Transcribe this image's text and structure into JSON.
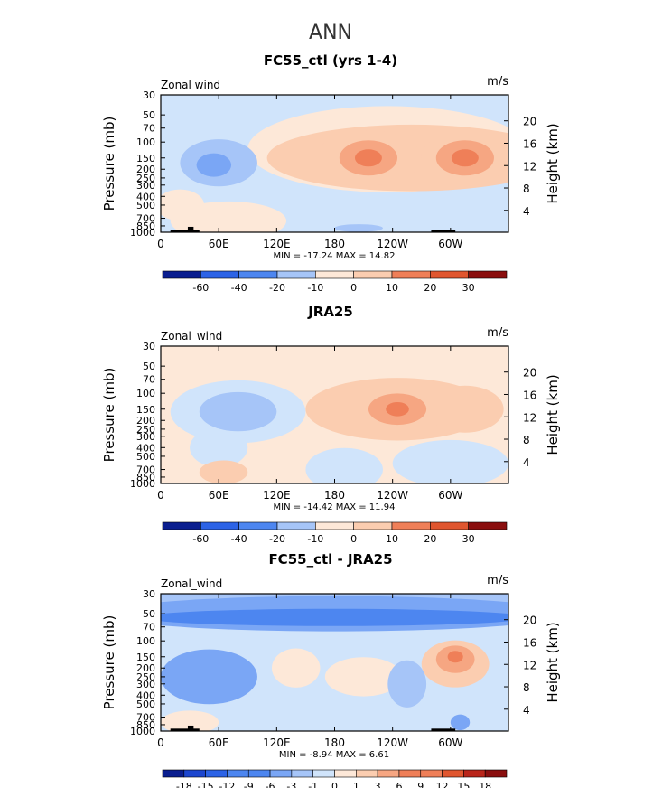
{
  "page": {
    "title": "ANN"
  },
  "colors": {
    "neg": [
      "#0a1e8f",
      "#1c46cf",
      "#2c63e6",
      "#4d86f0",
      "#7aa6f5",
      "#a6c5f8",
      "#d0e4fb"
    ],
    "pos": [
      "#fde8d8",
      "#fbcdb0",
      "#f6a682",
      "#ef7f58",
      "#e0562f",
      "#b9251a",
      "#8a0e0e"
    ]
  },
  "chart_data": [
    {
      "type": "heatmap",
      "title": "FC55_ctl (yrs 1-4)",
      "variable_label": "Zonal wind",
      "units": "m/s",
      "ylabel": "Pressure (mb)",
      "ylabel_right": "Height (km)",
      "x_ticks": [
        "0",
        "60E",
        "120E",
        "180",
        "120W",
        "60W"
      ],
      "y_ticks": [
        "30",
        "50",
        "70",
        "100",
        "150",
        "200",
        "250",
        "300",
        "400",
        "500",
        "700",
        "850",
        "1000"
      ],
      "height_ticks": [
        "20",
        "16",
        "12",
        "8",
        "4"
      ],
      "stats": "MIN = -17.24   MAX = 14.82",
      "min": -17.24,
      "max": 14.82,
      "colorbar_labels": [
        "-60",
        "-40",
        "-20",
        "-10",
        "0",
        "10",
        "20",
        "30"
      ],
      "background_level": -1,
      "features": [
        {
          "lon": 260,
          "p": 150,
          "level": 2,
          "rx": 150,
          "rp": 0.85
        },
        {
          "lon": 215,
          "p": 150,
          "level": 2,
          "rx": 55,
          "rp": 0.7
        },
        {
          "lon": 315,
          "p": 150,
          "level": 2,
          "rx": 45,
          "rp": 0.7
        },
        {
          "lon": 215,
          "p": 150,
          "level": 3,
          "rx": 30,
          "rp": 0.45
        },
        {
          "lon": 315,
          "p": 150,
          "level": 3,
          "rx": 30,
          "rp": 0.45
        },
        {
          "lon": 215,
          "p": 150,
          "level": 4,
          "rx": 14,
          "rp": 0.22
        },
        {
          "lon": 315,
          "p": 150,
          "level": 4,
          "rx": 14,
          "rp": 0.22
        },
        {
          "lon": 235,
          "p": 120,
          "level": 1,
          "rx": 145,
          "rp": 1.1
        },
        {
          "lon": 60,
          "p": 170,
          "level": -2,
          "rx": 40,
          "rp": 0.6
        },
        {
          "lon": 55,
          "p": 180,
          "level": -3,
          "rx": 18,
          "rp": 0.3
        },
        {
          "lon": 70,
          "p": 750,
          "level": 1,
          "rx": 60,
          "rp": 0.5
        },
        {
          "lon": 20,
          "p": 500,
          "level": 1,
          "rx": 25,
          "rp": 0.4
        },
        {
          "lon": 205,
          "p": 900,
          "level": -2,
          "rx": 25,
          "rp": 0.1
        }
      ],
      "topography": [
        {
          "lon0": 10,
          "lon1": 40,
          "p": 940
        },
        {
          "lon0": 28,
          "lon1": 34,
          "p": 870
        },
        {
          "lon0": 280,
          "lon1": 305,
          "p": 940
        }
      ]
    },
    {
      "type": "heatmap",
      "title": "JRA25",
      "variable_label": "Zonal_wind",
      "units": "m/s",
      "ylabel": "Pressure (mb)",
      "ylabel_right": "Height (km)",
      "x_ticks": [
        "0",
        "60E",
        "120E",
        "180",
        "120W",
        "60W"
      ],
      "y_ticks": [
        "30",
        "50",
        "70",
        "100",
        "150",
        "200",
        "250",
        "300",
        "400",
        "500",
        "700",
        "850",
        "1000"
      ],
      "height_ticks": [
        "20",
        "16",
        "12",
        "8",
        "4"
      ],
      "stats": "MIN = -14.42   MAX = 11.94",
      "min": -14.42,
      "max": 11.94,
      "colorbar_labels": [
        "-60",
        "-40",
        "-20",
        "-10",
        "0",
        "10",
        "20",
        "30"
      ],
      "background_level": 1,
      "features": [
        {
          "lon": 245,
          "p": 150,
          "level": 2,
          "rx": 95,
          "rp": 0.8
        },
        {
          "lon": 315,
          "p": 150,
          "level": 2,
          "rx": 40,
          "rp": 0.6
        },
        {
          "lon": 245,
          "p": 150,
          "level": 3,
          "rx": 30,
          "rp": 0.4
        },
        {
          "lon": 245,
          "p": 150,
          "level": 4,
          "rx": 12,
          "rp": 0.18
        },
        {
          "lon": 80,
          "p": 160,
          "level": -1,
          "rx": 70,
          "rp": 0.8
        },
        {
          "lon": 80,
          "p": 160,
          "level": -2,
          "rx": 40,
          "rp": 0.5
        },
        {
          "lon": 190,
          "p": 700,
          "level": -1,
          "rx": 40,
          "rp": 0.55
        },
        {
          "lon": 300,
          "p": 600,
          "level": -1,
          "rx": 60,
          "rp": 0.6
        },
        {
          "lon": 60,
          "p": 400,
          "level": -1,
          "rx": 30,
          "rp": 0.5
        },
        {
          "lon": 65,
          "p": 750,
          "level": 2,
          "rx": 25,
          "rp": 0.3
        }
      ],
      "topography": []
    },
    {
      "type": "heatmap",
      "title": "FC55_ctl - JRA25",
      "variable_label": "Zonal_wind",
      "units": "m/s",
      "ylabel": "Pressure (mb)",
      "ylabel_right": "Height (km)",
      "x_ticks": [
        "0",
        "60E",
        "120E",
        "180",
        "120W",
        "60W"
      ],
      "y_ticks": [
        "30",
        "50",
        "70",
        "100",
        "150",
        "200",
        "250",
        "300",
        "400",
        "500",
        "700",
        "850",
        "1000"
      ],
      "height_ticks": [
        "20",
        "16",
        "12",
        "8",
        "4"
      ],
      "stats": "MIN = -8.94   MAX = 6.61",
      "min": -8.94,
      "max": 6.61,
      "colorbar_labels": [
        "-18",
        "-15",
        "-12",
        "-9",
        "-6",
        "-3",
        "-1",
        "0",
        "1",
        "3",
        "6",
        "9",
        "12",
        "15",
        "18"
      ],
      "background_level": -1,
      "features": [
        {
          "lon": 180,
          "p": 50,
          "level": -3,
          "rx": 240,
          "rp": 0.45
        },
        {
          "lon": 180,
          "p": 55,
          "level": -4,
          "rx": 200,
          "rp": 0.22
        },
        {
          "lon": 180,
          "p": 35,
          "level": -2,
          "rx": 250,
          "rp": 0.35
        },
        {
          "lon": 50,
          "p": 250,
          "level": -3,
          "rx": 50,
          "rp": 0.7
        },
        {
          "lon": 140,
          "p": 200,
          "level": 1,
          "rx": 25,
          "rp": 0.5
        },
        {
          "lon": 210,
          "p": 250,
          "level": 1,
          "rx": 40,
          "rp": 0.5
        },
        {
          "lon": 305,
          "p": 180,
          "level": 2,
          "rx": 35,
          "rp": 0.6
        },
        {
          "lon": 305,
          "p": 160,
          "level": 3,
          "rx": 20,
          "rp": 0.35
        },
        {
          "lon": 305,
          "p": 150,
          "level": 4,
          "rx": 8,
          "rp": 0.15
        },
        {
          "lon": 255,
          "p": 300,
          "level": -2,
          "rx": 20,
          "rp": 0.6
        },
        {
          "lon": 30,
          "p": 800,
          "level": 1,
          "rx": 30,
          "rp": 0.3
        },
        {
          "lon": 310,
          "p": 800,
          "level": -3,
          "rx": 10,
          "rp": 0.2
        }
      ],
      "topography": [
        {
          "lon0": 10,
          "lon1": 40,
          "p": 940
        },
        {
          "lon0": 28,
          "lon1": 34,
          "p": 870
        },
        {
          "lon0": 280,
          "lon1": 305,
          "p": 940
        }
      ]
    }
  ]
}
